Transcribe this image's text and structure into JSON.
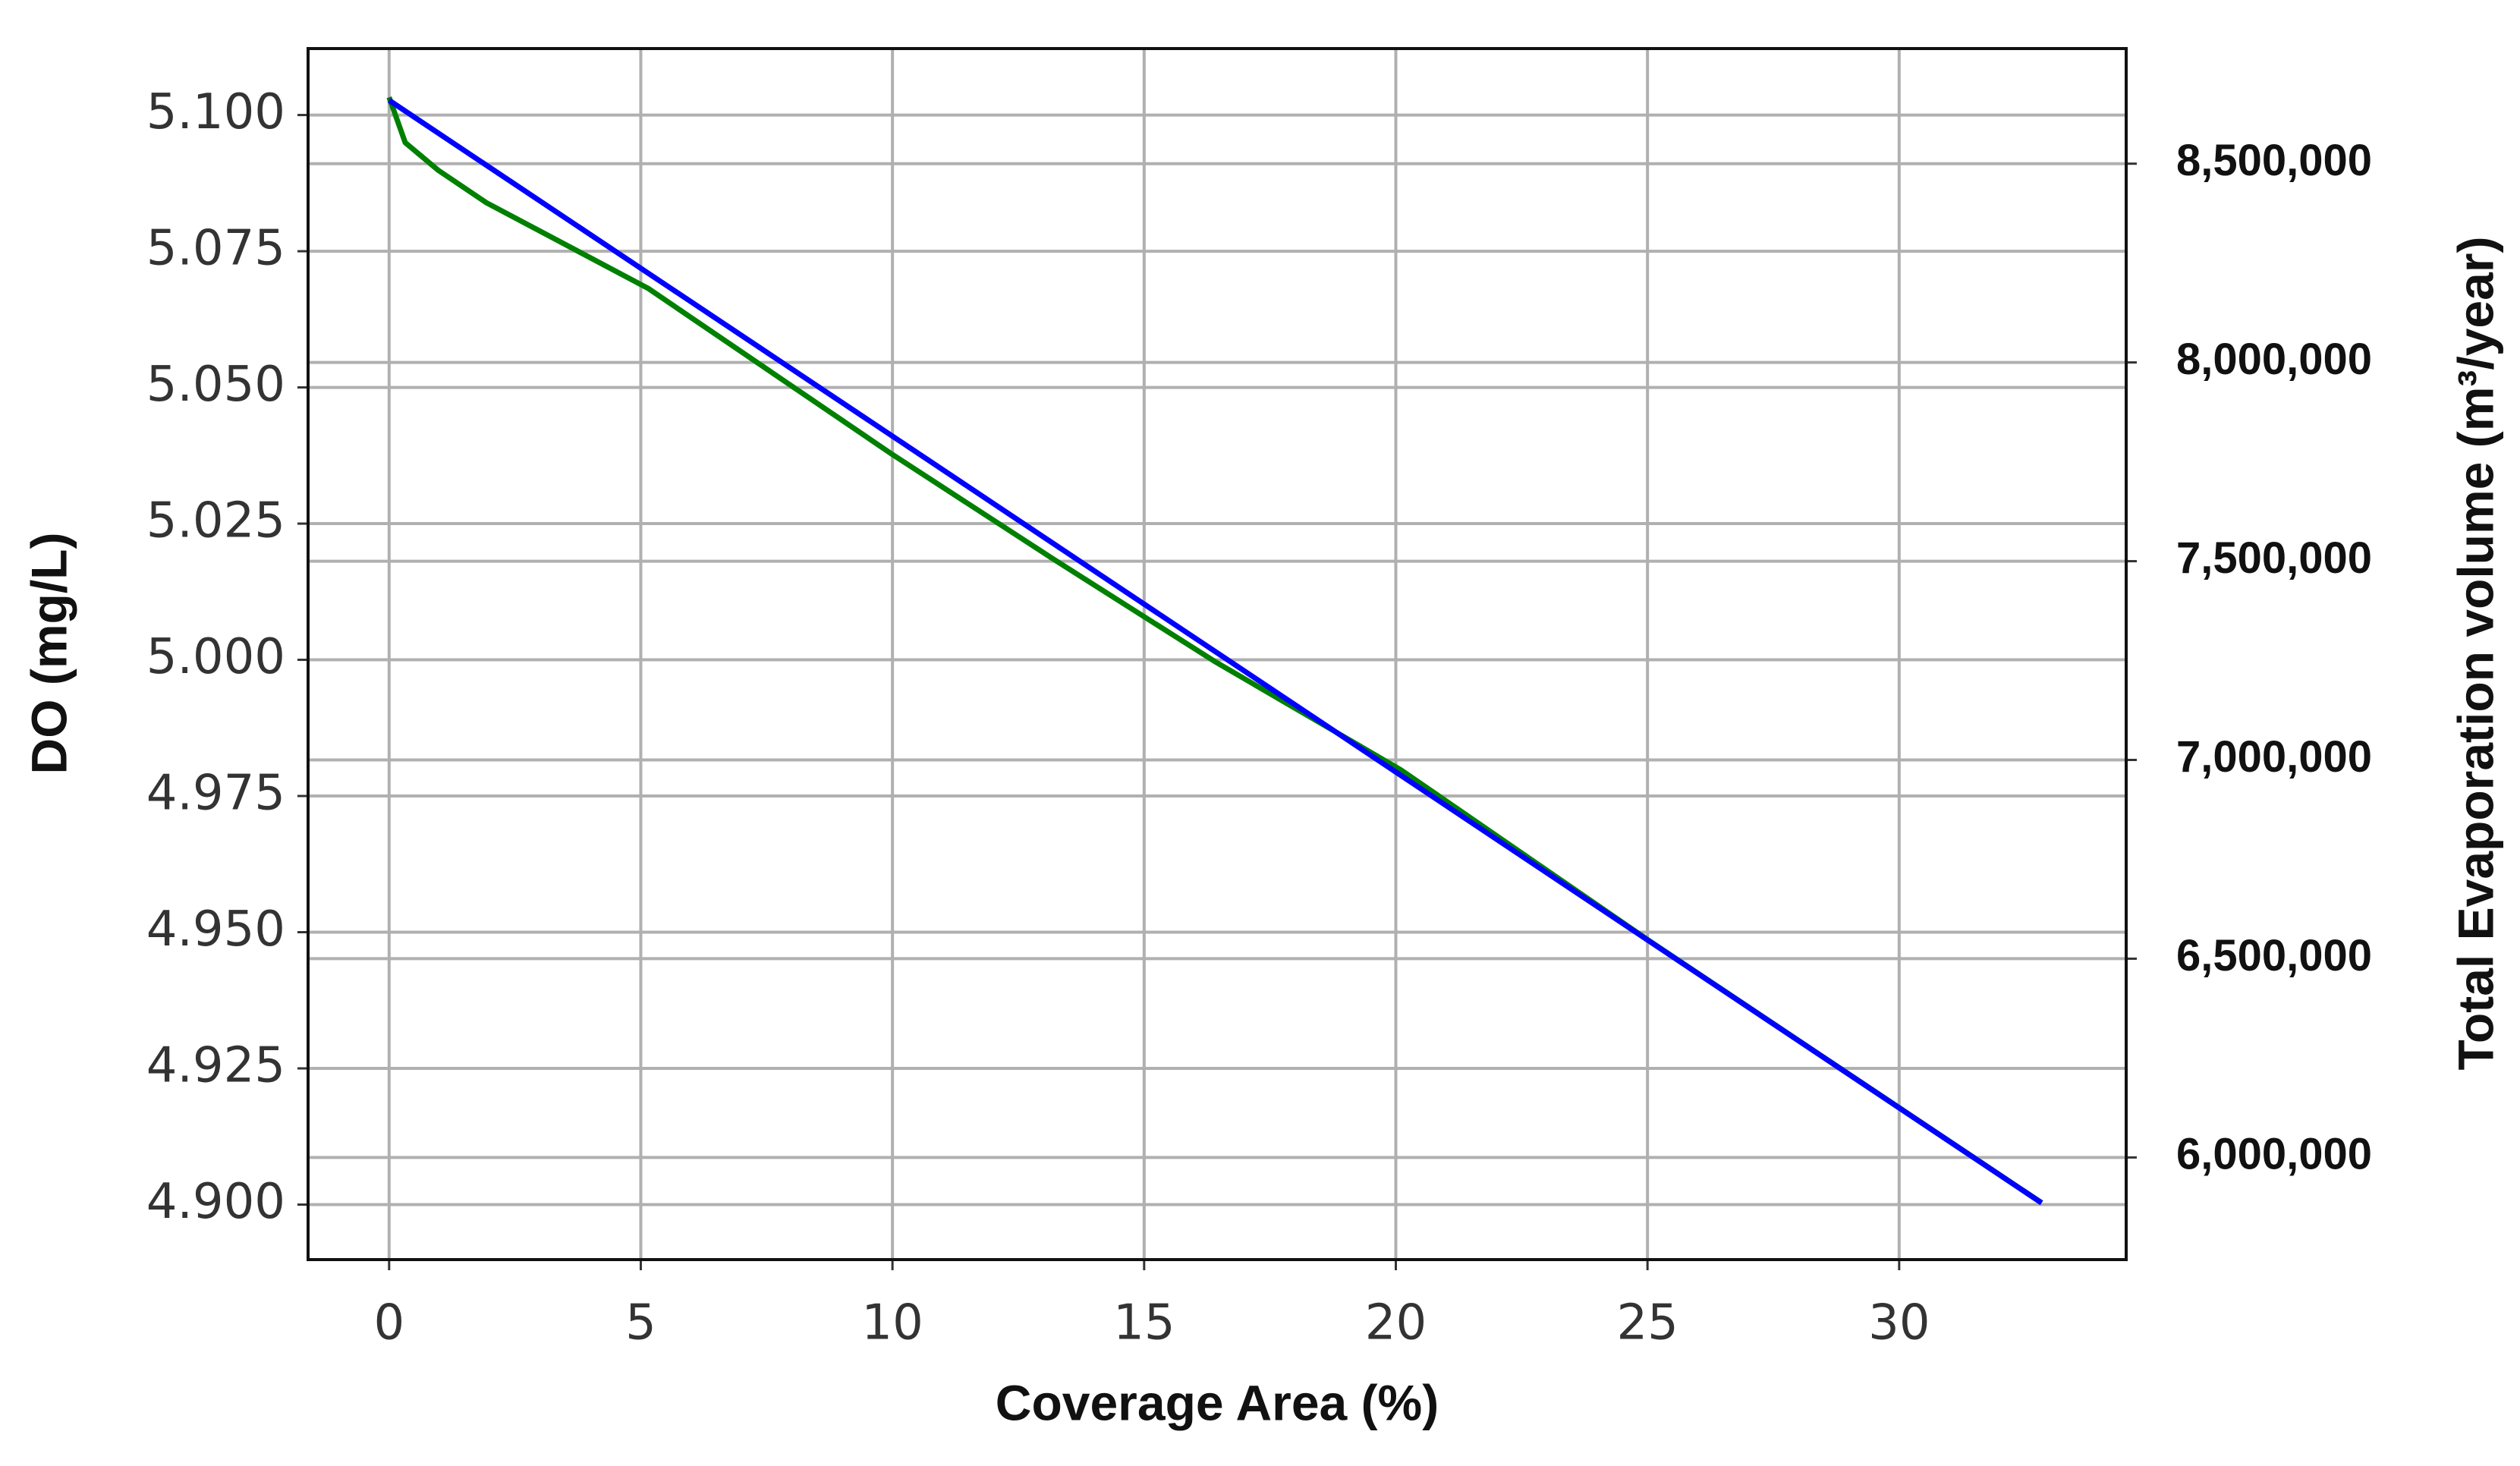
{
  "chart_data": {
    "type": "line",
    "xlabel": "Coverage Area (%)",
    "ylabel": "DO (mg/L)",
    "y2label": "Total Evaporation volume (m³/year)",
    "xlim": [
      -1.61,
      34.51
    ],
    "xticks": [
      0,
      5,
      10,
      15,
      20,
      25,
      30
    ],
    "ylim": [
      4.8899,
      5.1122
    ],
    "yticks": [
      {
        "value": 4.9,
        "label": "4.900"
      },
      {
        "value": 4.925,
        "label": "4.925"
      },
      {
        "value": 4.95,
        "label": "4.950"
      },
      {
        "value": 4.975,
        "label": "4.975"
      },
      {
        "value": 5.0,
        "label": "5.000"
      },
      {
        "value": 5.025,
        "label": "5.025"
      },
      {
        "value": 5.05,
        "label": "5.050"
      },
      {
        "value": 5.075,
        "label": "5.075"
      },
      {
        "value": 5.1,
        "label": "5.100"
      }
    ],
    "y2lim": [
      5743000,
      8789600
    ],
    "y2ticks": [
      {
        "value": 6000000,
        "label": "6,000,000"
      },
      {
        "value": 6500000,
        "label": "6,500,000"
      },
      {
        "value": 7000000,
        "label": "7,000,000"
      },
      {
        "value": 7500000,
        "label": "7,500,000"
      },
      {
        "value": 8000000,
        "label": "8,000,000"
      },
      {
        "value": 8500000,
        "label": "8,500,000"
      }
    ],
    "grid": true,
    "series": [
      {
        "color": "#008000",
        "axis": "y2",
        "x": [
          0,
          0.32,
          0.97,
          1.93,
          5.15,
          9.98,
          13.2,
          16.4,
          20.1,
          25,
          32.83
        ],
        "values": [
          8667000,
          8553000,
          8484000,
          8402000,
          8186000,
          7770000,
          7505000,
          7248000,
          6975000,
          6548000,
          5886000
        ]
      },
      {
        "color": "#0000ff",
        "x": [
          0,
          32.83
        ],
        "values": [
          5.1027,
          4.9003
        ]
      }
    ]
  }
}
